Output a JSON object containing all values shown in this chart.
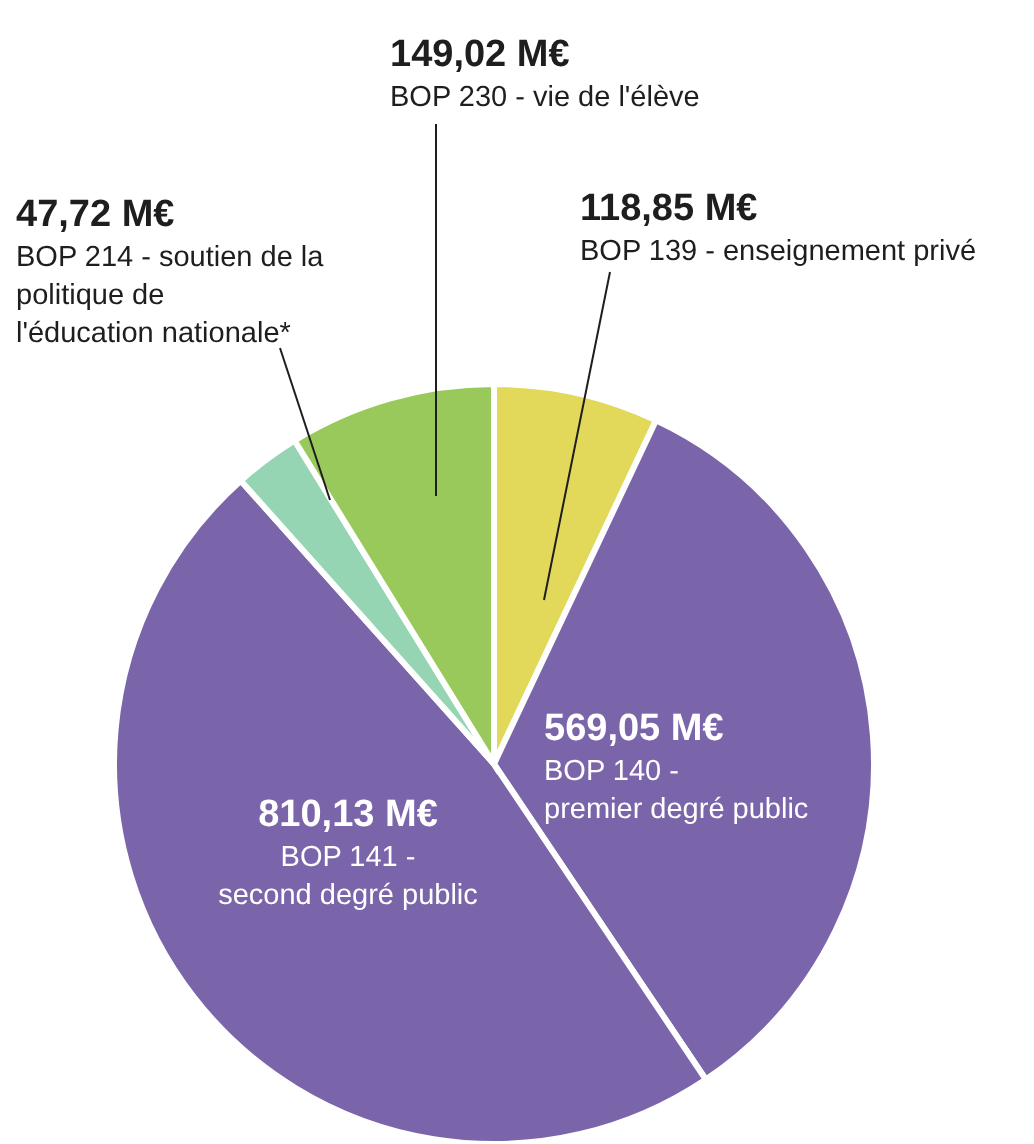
{
  "chart_data": {
    "type": "pie",
    "categories": [
      "BOP 139 - enseignement privé",
      "BOP 140 - premier degré public",
      "BOP 141 - second degré public",
      "BOP 214 - soutien de la politique de l'éducation nationale*",
      "BOP 230 - vie de l'élève"
    ],
    "values": [
      118.85,
      569.05,
      810.13,
      47.72,
      149.02
    ],
    "colors": [
      "#e2d85a",
      "#7b65aa",
      "#7b65aa",
      "#95d5b4",
      "#98c95a"
    ],
    "value_labels": [
      "118,85 M€",
      "569,05 M€",
      "810,13 M€",
      "47,72 M€",
      "149,02 M€"
    ]
  }
}
